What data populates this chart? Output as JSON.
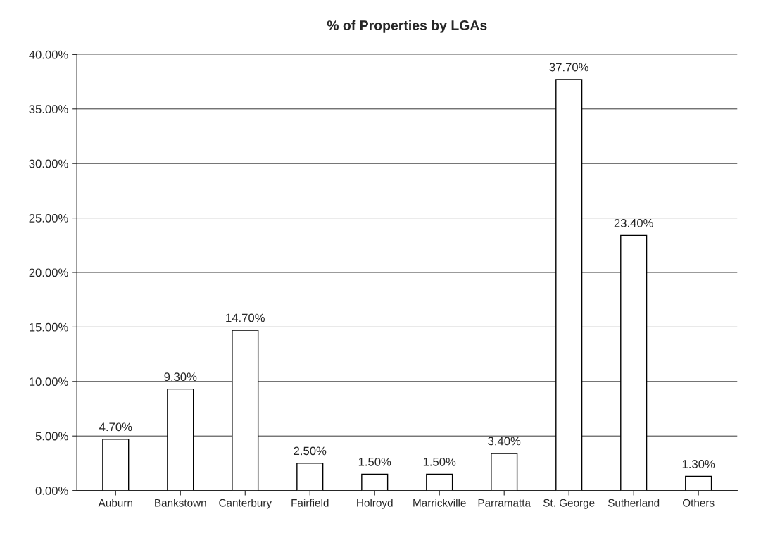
{
  "chart_data": {
    "type": "bar",
    "title": "% of Properties by LGAs",
    "categories": [
      "Auburn",
      "Bankstown",
      "Canterbury",
      "Fairfield",
      "Holroyd",
      "Marrickville",
      "Parramatta",
      "St. George",
      "Sutherland",
      "Others"
    ],
    "values": [
      4.7,
      9.3,
      14.7,
      2.5,
      1.5,
      1.5,
      3.4,
      37.7,
      23.4,
      1.3
    ],
    "value_labels": [
      "4.70%",
      "9.30%",
      "14.70%",
      "2.50%",
      "1.50%",
      "1.50%",
      "3.40%",
      "37.70%",
      "23.40%",
      "1.30%"
    ],
    "color": "#ffffff",
    "ylim": [
      0,
      40
    ],
    "yticks": [
      {
        "value": 0,
        "label": "0.00%"
      },
      {
        "value": 5,
        "label": "5.00%"
      },
      {
        "value": 10,
        "label": "10.00%"
      },
      {
        "value": 15,
        "label": "15.00%"
      },
      {
        "value": 20,
        "label": "20.00%"
      },
      {
        "value": 25,
        "label": "25.00%"
      },
      {
        "value": 30,
        "label": "30.00%"
      },
      {
        "value": 35,
        "label": "35.00%"
      },
      {
        "value": 40,
        "label": "40.00%"
      }
    ],
    "grid": "y",
    "legend": false
  }
}
